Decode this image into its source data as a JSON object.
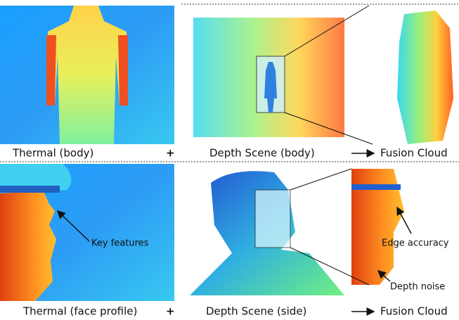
{
  "rows": [
    {
      "thermal_caption": "Thermal (body)",
      "plus": "+",
      "depth_caption": "Depth Scene (body)",
      "fusion_caption": "Fusion Cloud"
    },
    {
      "thermal_caption": "Thermal (face profile)",
      "plus": "+",
      "depth_caption": "Depth Scene (side)",
      "fusion_caption": "Fusion Cloud",
      "annotations": [
        "Key features",
        "Edge accuracy",
        "Depth noise"
      ]
    }
  ]
}
